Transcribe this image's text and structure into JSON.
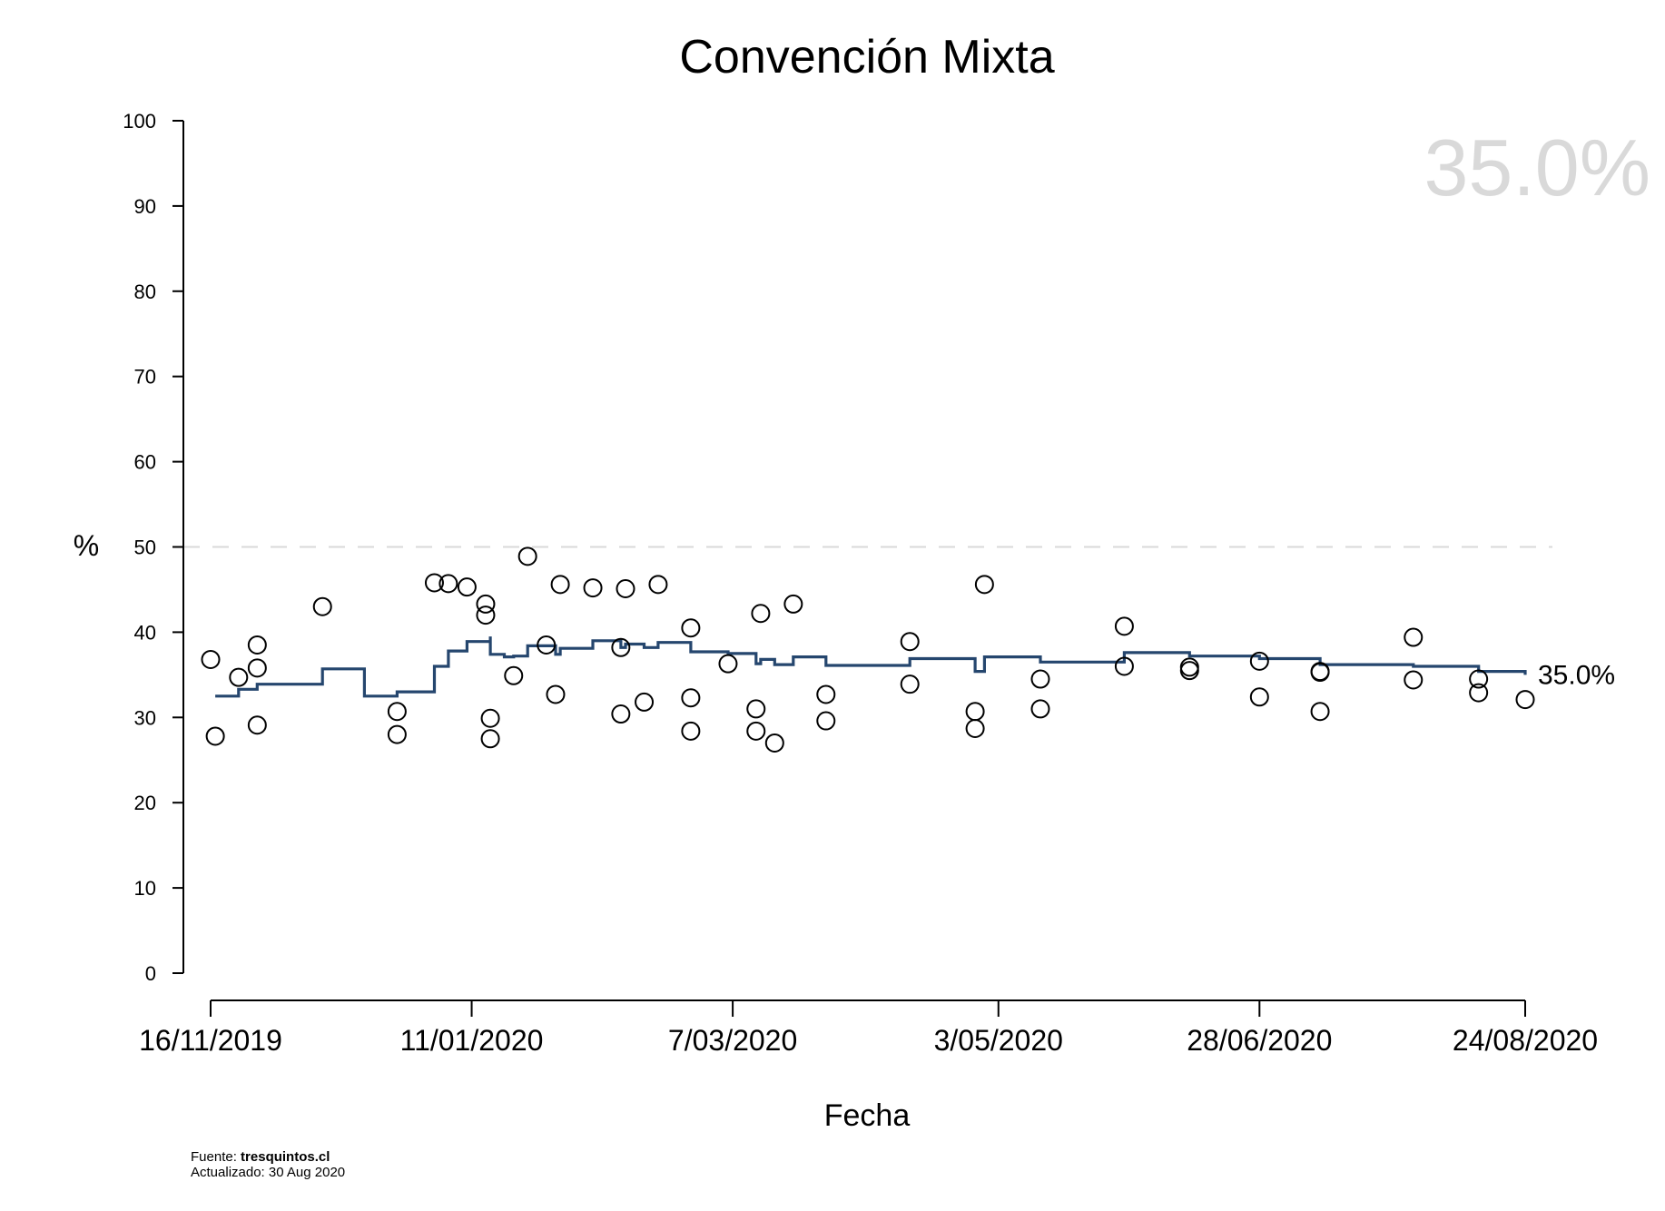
{
  "chart_data": {
    "type": "scatter",
    "title": "Convención Mixta",
    "xlabel": "Fecha",
    "ylabel": "%",
    "ylim": [
      0,
      100
    ],
    "yticks": [
      0,
      10,
      20,
      30,
      40,
      50,
      60,
      70,
      80,
      90,
      100
    ],
    "xlim": [
      "2019-11-16",
      "2020-08-24"
    ],
    "xticks": [
      "16/11/2019",
      "11/01/2020",
      "7/03/2020",
      "3/05/2020",
      "28/06/2020",
      "24/08/2020"
    ],
    "reference_line": {
      "y": 50,
      "style": "dashed",
      "color": "#d9d9d9"
    },
    "watermark": "35.0%",
    "end_label": "35.0%",
    "grid": false,
    "colors": {
      "trend": "#25466e",
      "points": "#000000",
      "watermark": "#d9d9d9",
      "reference": "#d9d9d9"
    },
    "polls": [
      {
        "x": "2019-11-16",
        "y": 36.8
      },
      {
        "x": "2019-11-17",
        "y": 27.8
      },
      {
        "x": "2019-11-22",
        "y": 34.7
      },
      {
        "x": "2019-11-26",
        "y": 38.5
      },
      {
        "x": "2019-11-26",
        "y": 35.8
      },
      {
        "x": "2019-11-26",
        "y": 29.1
      },
      {
        "x": "2019-12-10",
        "y": 43.0
      },
      {
        "x": "2019-12-26",
        "y": 30.7
      },
      {
        "x": "2019-12-26",
        "y": 28.0
      },
      {
        "x": "2020-01-03",
        "y": 45.8
      },
      {
        "x": "2020-01-06",
        "y": 45.7
      },
      {
        "x": "2020-01-10",
        "y": 45.3
      },
      {
        "x": "2020-01-14",
        "y": 43.3
      },
      {
        "x": "2020-01-14",
        "y": 42.0
      },
      {
        "x": "2020-01-15",
        "y": 29.9
      },
      {
        "x": "2020-01-15",
        "y": 27.5
      },
      {
        "x": "2020-01-20",
        "y": 34.9
      },
      {
        "x": "2020-01-23",
        "y": 48.9
      },
      {
        "x": "2020-01-27",
        "y": 38.5
      },
      {
        "x": "2020-01-29",
        "y": 32.7
      },
      {
        "x": "2020-01-30",
        "y": 45.6
      },
      {
        "x": "2020-02-06",
        "y": 45.2
      },
      {
        "x": "2020-02-12",
        "y": 30.4
      },
      {
        "x": "2020-02-12",
        "y": 38.2
      },
      {
        "x": "2020-02-13",
        "y": 45.1
      },
      {
        "x": "2020-02-17",
        "y": 31.8
      },
      {
        "x": "2020-02-20",
        "y": 45.6
      },
      {
        "x": "2020-02-27",
        "y": 40.5
      },
      {
        "x": "2020-02-27",
        "y": 32.3
      },
      {
        "x": "2020-02-27",
        "y": 28.4
      },
      {
        "x": "2020-03-06",
        "y": 36.3
      },
      {
        "x": "2020-03-12",
        "y": 31.0
      },
      {
        "x": "2020-03-12",
        "y": 28.4
      },
      {
        "x": "2020-03-13",
        "y": 42.2
      },
      {
        "x": "2020-03-16",
        "y": 27.0
      },
      {
        "x": "2020-03-20",
        "y": 43.3
      },
      {
        "x": "2020-03-27",
        "y": 32.7
      },
      {
        "x": "2020-03-27",
        "y": 29.6
      },
      {
        "x": "2020-04-14",
        "y": 38.9
      },
      {
        "x": "2020-04-14",
        "y": 33.9
      },
      {
        "x": "2020-04-28",
        "y": 30.7
      },
      {
        "x": "2020-04-28",
        "y": 28.7
      },
      {
        "x": "2020-04-30",
        "y": 45.6
      },
      {
        "x": "2020-05-12",
        "y": 34.5
      },
      {
        "x": "2020-05-12",
        "y": 31.0
      },
      {
        "x": "2020-05-30",
        "y": 40.7
      },
      {
        "x": "2020-05-30",
        "y": 36.0
      },
      {
        "x": "2020-06-13",
        "y": 35.9
      },
      {
        "x": "2020-06-13",
        "y": 35.5
      },
      {
        "x": "2020-06-28",
        "y": 36.6
      },
      {
        "x": "2020-06-28",
        "y": 32.4
      },
      {
        "x": "2020-07-11",
        "y": 35.4
      },
      {
        "x": "2020-07-11",
        "y": 35.3
      },
      {
        "x": "2020-07-11",
        "y": 30.7
      },
      {
        "x": "2020-07-31",
        "y": 39.4
      },
      {
        "x": "2020-07-31",
        "y": 34.4
      },
      {
        "x": "2020-08-14",
        "y": 34.5
      },
      {
        "x": "2020-08-14",
        "y": 32.9
      },
      {
        "x": "2020-08-24",
        "y": 32.1
      }
    ],
    "trend": [
      {
        "x": "2019-11-17",
        "y": 32.5
      },
      {
        "x": "2019-11-22",
        "y": 33.3
      },
      {
        "x": "2019-11-26",
        "y": 33.9
      },
      {
        "x": "2019-12-10",
        "y": 35.7
      },
      {
        "x": "2019-12-19",
        "y": 32.5
      },
      {
        "x": "2019-12-26",
        "y": 33.0
      },
      {
        "x": "2020-01-03",
        "y": 36.0
      },
      {
        "x": "2020-01-06",
        "y": 37.8
      },
      {
        "x": "2020-01-10",
        "y": 38.9
      },
      {
        "x": "2020-01-15",
        "y": 39.5
      },
      {
        "x": "2020-01-15",
        "y": 37.4
      },
      {
        "x": "2020-01-18",
        "y": 37.1
      },
      {
        "x": "2020-01-20",
        "y": 37.2
      },
      {
        "x": "2020-01-23",
        "y": 38.4
      },
      {
        "x": "2020-01-29",
        "y": 37.4
      },
      {
        "x": "2020-01-30",
        "y": 38.1
      },
      {
        "x": "2020-02-06",
        "y": 39.0
      },
      {
        "x": "2020-02-12",
        "y": 38.2
      },
      {
        "x": "2020-02-13",
        "y": 38.6
      },
      {
        "x": "2020-02-17",
        "y": 38.2
      },
      {
        "x": "2020-02-20",
        "y": 38.8
      },
      {
        "x": "2020-02-27",
        "y": 37.7
      },
      {
        "x": "2020-03-06",
        "y": 37.5
      },
      {
        "x": "2020-03-12",
        "y": 36.3
      },
      {
        "x": "2020-03-13",
        "y": 36.8
      },
      {
        "x": "2020-03-16",
        "y": 36.2
      },
      {
        "x": "2020-03-20",
        "y": 37.1
      },
      {
        "x": "2020-03-27",
        "y": 36.1
      },
      {
        "x": "2020-04-14",
        "y": 36.9
      },
      {
        "x": "2020-04-28",
        "y": 35.4
      },
      {
        "x": "2020-04-30",
        "y": 37.1
      },
      {
        "x": "2020-05-12",
        "y": 36.5
      },
      {
        "x": "2020-05-30",
        "y": 37.6
      },
      {
        "x": "2020-06-13",
        "y": 37.2
      },
      {
        "x": "2020-06-28",
        "y": 36.9
      },
      {
        "x": "2020-07-11",
        "y": 36.2
      },
      {
        "x": "2020-07-31",
        "y": 36.0
      },
      {
        "x": "2020-08-14",
        "y": 35.4
      },
      {
        "x": "2020-08-24",
        "y": 35.0
      }
    ]
  },
  "footer": {
    "source_label": "Fuente: ",
    "source_value": "tresquintos.cl",
    "updated_label": "Actualizado: ",
    "updated_value": "30 Aug 2020"
  }
}
